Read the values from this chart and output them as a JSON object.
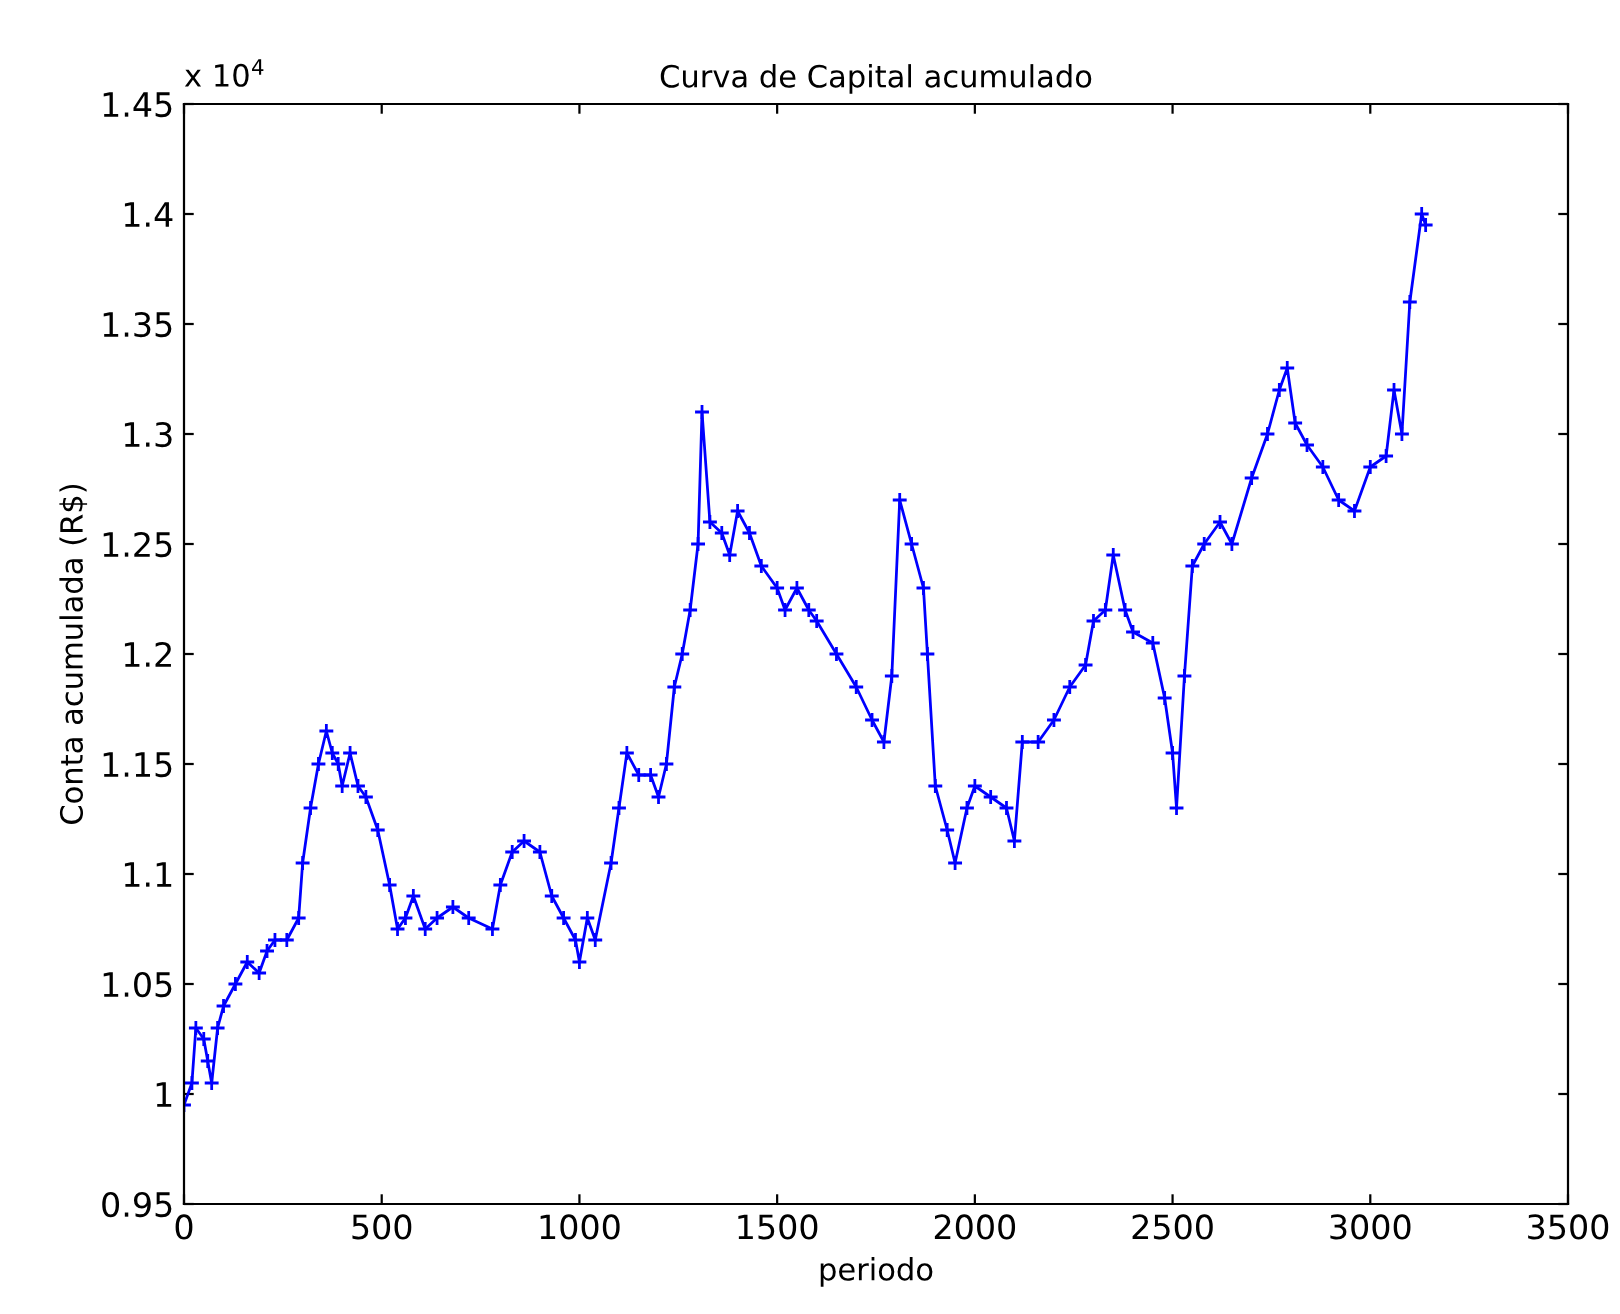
{
  "chart_data": {
    "type": "line",
    "title": "Curva de Capital acumulado",
    "xlabel": "periodo",
    "ylabel": "Conta acumulada (R$)",
    "annotations": [
      "x 10$^{4}$"
    ],
    "x": [
      0,
      20,
      30,
      50,
      60,
      70,
      85,
      100,
      130,
      160,
      190,
      210,
      230,
      260,
      290,
      300,
      320,
      340,
      360,
      375,
      390,
      400,
      420,
      440,
      460,
      490,
      520,
      540,
      560,
      580,
      610,
      640,
      680,
      720,
      780,
      800,
      830,
      860,
      900,
      930,
      960,
      990,
      1000,
      1020,
      1040,
      1080,
      1100,
      1120,
      1150,
      1180,
      1200,
      1220,
      1240,
      1260,
      1280,
      1300,
      1310,
      1330,
      1360,
      1380,
      1400,
      1430,
      1460,
      1500,
      1520,
      1550,
      1580,
      1600,
      1650,
      1700,
      1740,
      1770,
      1790,
      1810,
      1840,
      1870,
      1880,
      1900,
      1930,
      1950,
      1980,
      2000,
      2040,
      2080,
      2100,
      2120,
      2160,
      2200,
      2240,
      2280,
      2300,
      2330,
      2350,
      2380,
      2400,
      2450,
      2480,
      2500,
      2510,
      2530,
      2550,
      2580,
      2620,
      2650,
      2700,
      2740,
      2770,
      2790,
      2810,
      2840,
      2880,
      2920,
      2960,
      3000,
      3040,
      3060,
      3080,
      3100,
      3130,
      3140
    ],
    "series": [
      {
        "color": "#0000ff",
        "values": [
          0.995,
          1.005,
          1.03,
          1.025,
          1.015,
          1.005,
          1.03,
          1.04,
          1.05,
          1.06,
          1.055,
          1.065,
          1.07,
          1.07,
          1.08,
          1.105,
          1.13,
          1.15,
          1.165,
          1.155,
          1.15,
          1.14,
          1.155,
          1.14,
          1.135,
          1.12,
          1.095,
          1.075,
          1.08,
          1.09,
          1.075,
          1.08,
          1.085,
          1.08,
          1.075,
          1.095,
          1.11,
          1.115,
          1.11,
          1.09,
          1.08,
          1.07,
          1.06,
          1.08,
          1.07,
          1.105,
          1.13,
          1.155,
          1.145,
          1.145,
          1.135,
          1.15,
          1.185,
          1.2,
          1.22,
          1.25,
          1.31,
          1.26,
          1.255,
          1.245,
          1.265,
          1.255,
          1.24,
          1.23,
          1.22,
          1.23,
          1.22,
          1.215,
          1.2,
          1.185,
          1.17,
          1.16,
          1.19,
          1.27,
          1.25,
          1.23,
          1.2,
          1.14,
          1.12,
          1.105,
          1.13,
          1.14,
          1.135,
          1.13,
          1.115,
          1.16,
          1.16,
          1.17,
          1.185,
          1.195,
          1.215,
          1.22,
          1.245,
          1.22,
          1.21,
          1.205,
          1.18,
          1.155,
          1.13,
          1.19,
          1.24,
          1.25,
          1.26,
          1.25,
          1.28,
          1.3,
          1.32,
          1.33,
          1.305,
          1.295,
          1.285,
          1.27,
          1.265,
          1.285,
          1.29,
          1.32,
          1.3,
          1.36,
          1.4,
          1.395
        ]
      }
    ],
    "xlim": [
      0,
      3500
    ],
    "xticks": [
      0,
      500,
      1000,
      1500,
      2000,
      2500,
      3000,
      3500
    ],
    "ylim": [
      0.95,
      1.45
    ],
    "yticks": [
      0.95,
      1,
      1.05,
      1.1,
      1.15,
      1.2,
      1.25,
      1.3,
      1.35,
      1.4,
      1.45
    ],
    "grid": false,
    "legend": false,
    "marker": "cross",
    "line_style": "solid"
  }
}
